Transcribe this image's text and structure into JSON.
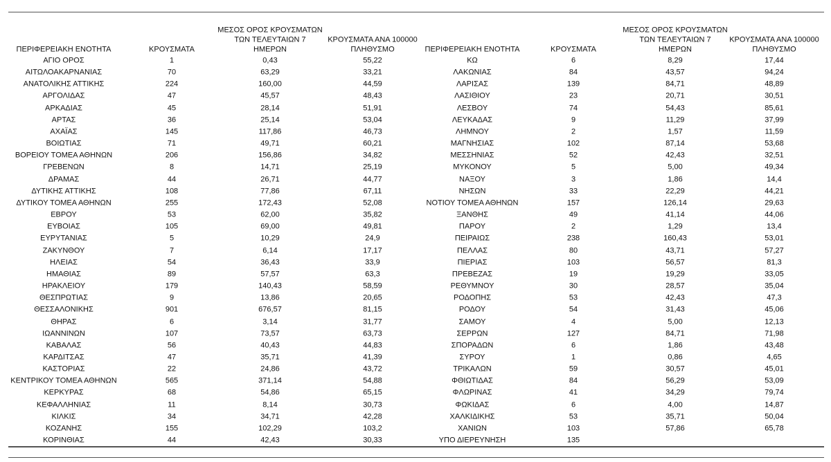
{
  "tables": [
    {
      "headers": [
        [
          "ΠΕΡΙΦΕΡΕΙΑΚΗ ΕΝΟΤΗΤΑ"
        ],
        [
          "ΚΡΟΥΣΜΑΤΑ"
        ],
        [
          "ΜΕΣΟΣ ΟΡΟΣ ΚΡΟΥΣΜΑΤΩΝ",
          "ΤΩΝ ΤΕΛΕΥΤΑΙΩΝ 7",
          "ΗΜΕΡΩΝ"
        ],
        [
          "ΚΡΟΥΣΜΑΤΑ ΑΝΑ 100000",
          "ΠΛΗΘΥΣΜΟ"
        ]
      ],
      "rows": [
        [
          "ΑΓΙΟ ΟΡΟΣ",
          "1",
          "0,43",
          "55,22"
        ],
        [
          "ΑΙΤΩΛΟΑΚΑΡΝΑΝΙΑΣ",
          "70",
          "63,29",
          "33,21"
        ],
        [
          "ΑΝΑΤΟΛΙΚΗΣ ΑΤΤΙΚΗΣ",
          "224",
          "160,00",
          "44,59"
        ],
        [
          "ΑΡΓΟΛΙΔΑΣ",
          "47",
          "45,57",
          "48,43"
        ],
        [
          "ΑΡΚΑΔΙΑΣ",
          "45",
          "28,14",
          "51,91"
        ],
        [
          "ΑΡΤΑΣ",
          "36",
          "25,14",
          "53,04"
        ],
        [
          "ΑΧΑΪΑΣ",
          "145",
          "117,86",
          "46,73"
        ],
        [
          "ΒΟΙΩΤΙΑΣ",
          "71",
          "49,71",
          "60,21"
        ],
        [
          "ΒΟΡΕΙΟΥ ΤΟΜΕΑ ΑΘΗΝΩΝ",
          "206",
          "156,86",
          "34,82"
        ],
        [
          "ΓΡΕΒΕΝΩΝ",
          "8",
          "14,71",
          "25,19"
        ],
        [
          "ΔΡΑΜΑΣ",
          "44",
          "26,71",
          "44,77"
        ],
        [
          "ΔΥΤΙΚΗΣ ΑΤΤΙΚΗΣ",
          "108",
          "77,86",
          "67,11"
        ],
        [
          "ΔΥΤΙΚΟΥ ΤΟΜΕΑ ΑΘΗΝΩΝ",
          "255",
          "172,43",
          "52,08"
        ],
        [
          "ΕΒΡΟΥ",
          "53",
          "62,00",
          "35,82"
        ],
        [
          "ΕΥΒΟΙΑΣ",
          "105",
          "69,00",
          "49,81"
        ],
        [
          "ΕΥΡΥΤΑΝΙΑΣ",
          "5",
          "10,29",
          "24,9"
        ],
        [
          "ΖΑΚΥΝΘΟΥ",
          "7",
          "6,14",
          "17,17"
        ],
        [
          "ΗΛΕΙΑΣ",
          "54",
          "36,43",
          "33,9"
        ],
        [
          "ΗΜΑΘΙΑΣ",
          "89",
          "57,57",
          "63,3"
        ],
        [
          "ΗΡΑΚΛΕΙΟΥ",
          "179",
          "140,43",
          "58,59"
        ],
        [
          "ΘΕΣΠΡΩΤΙΑΣ",
          "9",
          "13,86",
          "20,65"
        ],
        [
          "ΘΕΣΣΑΛΟΝΙΚΗΣ",
          "901",
          "676,57",
          "81,15"
        ],
        [
          "ΘΗΡΑΣ",
          "6",
          "3,14",
          "31,77"
        ],
        [
          "ΙΩΑΝΝΙΝΩΝ",
          "107",
          "73,57",
          "63,73"
        ],
        [
          "ΚΑΒΑΛΑΣ",
          "56",
          "40,43",
          "44,83"
        ],
        [
          "ΚΑΡΔΙΤΣΑΣ",
          "47",
          "35,71",
          "41,39"
        ],
        [
          "ΚΑΣΤΟΡΙΑΣ",
          "22",
          "24,86",
          "43,72"
        ],
        [
          "ΚΕΝΤΡΙΚΟΥ ΤΟΜΕΑ ΑΘΗΝΩΝ",
          "565",
          "371,14",
          "54,88"
        ],
        [
          "ΚΕΡΚΥΡΑΣ",
          "68",
          "54,86",
          "65,15"
        ],
        [
          "ΚΕΦΑΛΛΗΝΙΑΣ",
          "11",
          "8,14",
          "30,73"
        ],
        [
          "ΚΙΛΚΙΣ",
          "34",
          "34,71",
          "42,28"
        ],
        [
          "ΚΟΖΑΝΗΣ",
          "155",
          "102,29",
          "103,2"
        ],
        [
          "ΚΟΡΙΝΘΙΑΣ",
          "44",
          "42,43",
          "30,33"
        ]
      ]
    },
    {
      "headers": [
        [
          "ΠΕΡΙΦΕΡΕΙΑΚΗ ΕΝΟΤΗΤΑ"
        ],
        [
          "ΚΡΟΥΣΜΑΤΑ"
        ],
        [
          "ΜΕΣΟΣ ΟΡΟΣ ΚΡΟΥΣΜΑΤΩΝ",
          "ΤΩΝ ΤΕΛΕΥΤΑΙΩΝ 7",
          "ΗΜΕΡΩΝ"
        ],
        [
          "ΚΡΟΥΣΜΑΤΑ ΑΝΑ 100000",
          "ΠΛΗΘΥΣΜΟ"
        ]
      ],
      "rows": [
        [
          "ΚΩ",
          "6",
          "8,29",
          "17,44"
        ],
        [
          "ΛΑΚΩΝΙΑΣ",
          "84",
          "43,57",
          "94,24"
        ],
        [
          "ΛΑΡΙΣΑΣ",
          "139",
          "84,71",
          "48,89"
        ],
        [
          "ΛΑΣΙΘΙΟΥ",
          "23",
          "20,71",
          "30,51"
        ],
        [
          "ΛΕΣΒΟΥ",
          "74",
          "54,43",
          "85,61"
        ],
        [
          "ΛΕΥΚΑΔΑΣ",
          "9",
          "11,29",
          "37,99"
        ],
        [
          "ΛΗΜΝΟΥ",
          "2",
          "1,57",
          "11,59"
        ],
        [
          "ΜΑΓΝΗΣΙΑΣ",
          "102",
          "87,14",
          "53,68"
        ],
        [
          "ΜΕΣΣΗΝΙΑΣ",
          "52",
          "42,43",
          "32,51"
        ],
        [
          "ΜΥΚΟΝΟΥ",
          "5",
          "5,00",
          "49,34"
        ],
        [
          "ΝΑΞΟΥ",
          "3",
          "1,86",
          "14,4"
        ],
        [
          "ΝΗΣΩΝ",
          "33",
          "22,29",
          "44,21"
        ],
        [
          "ΝΟΤΙΟΥ ΤΟΜΕΑ ΑΘΗΝΩΝ",
          "157",
          "126,14",
          "29,63"
        ],
        [
          "ΞΑΝΘΗΣ",
          "49",
          "41,14",
          "44,06"
        ],
        [
          "ΠΑΡΟΥ",
          "2",
          "1,29",
          "13,4"
        ],
        [
          "ΠΕΙΡΑΙΩΣ",
          "238",
          "160,43",
          "53,01"
        ],
        [
          "ΠΕΛΛΑΣ",
          "80",
          "43,71",
          "57,27"
        ],
        [
          "ΠΙΕΡΙΑΣ",
          "103",
          "56,57",
          "81,3"
        ],
        [
          "ΠΡΕΒΕΖΑΣ",
          "19",
          "19,29",
          "33,05"
        ],
        [
          "ΡΕΘΥΜΝΟΥ",
          "30",
          "28,57",
          "35,04"
        ],
        [
          "ΡΟΔΟΠΗΣ",
          "53",
          "42,43",
          "47,3"
        ],
        [
          "ΡΟΔΟΥ",
          "54",
          "31,43",
          "45,06"
        ],
        [
          "ΣΑΜΟΥ",
          "4",
          "5,00",
          "12,13"
        ],
        [
          "ΣΕΡΡΩΝ",
          "127",
          "84,71",
          "71,98"
        ],
        [
          "ΣΠΟΡΑΔΩΝ",
          "6",
          "1,86",
          "43,48"
        ],
        [
          "ΣΥΡΟΥ",
          "1",
          "0,86",
          "4,65"
        ],
        [
          "ΤΡΙΚΑΛΩΝ",
          "59",
          "30,57",
          "45,01"
        ],
        [
          "ΦΘΙΩΤΙΔΑΣ",
          "84",
          "56,29",
          "53,09"
        ],
        [
          "ΦΛΩΡΙΝΑΣ",
          "41",
          "34,29",
          "79,74"
        ],
        [
          "ΦΩΚΙΔΑΣ",
          "6",
          "4,00",
          "14,87"
        ],
        [
          "ΧΑΛΚΙΔΙΚΗΣ",
          "53",
          "35,71",
          "50,04"
        ],
        [
          "ΧΑΝΙΩΝ",
          "103",
          "57,86",
          "65,78"
        ],
        [
          "ΥΠΟ ΔΙΕΡΕΥΝΗΣΗ",
          "135"
        ]
      ]
    }
  ]
}
